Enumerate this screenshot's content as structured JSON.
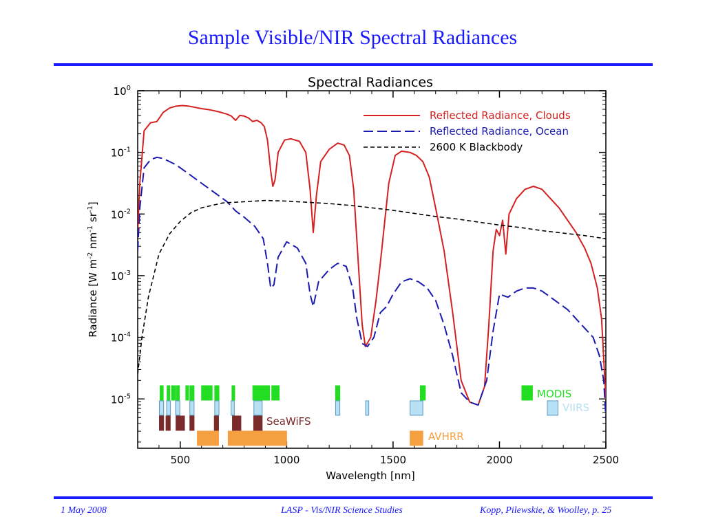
{
  "slide": {
    "title": "Sample Visible/NIR Spectral Radiances",
    "footer_left": "1 May 2008",
    "footer_center": "LASP - Vis/NIR Science Studies",
    "footer_right": "Kopp, Pilewskie, & Woolley, p. 25"
  },
  "colors": {
    "title": "#1a1aff",
    "clouds": "#d42020",
    "ocean": "#1a1ab0",
    "blackbody": "#000000",
    "modis": "#22dd22",
    "viirs": "#b8e0f4",
    "seawifs": "#7a2a2a",
    "avhrr": "#f5a040"
  },
  "chart_data": {
    "type": "line",
    "title": "Spectral Radiances",
    "xlabel": "Wavelength [nm]",
    "ylabel_text": "Radiance [W m",
    "ylabel_units": [
      "-2",
      " nm",
      "-1",
      " sr",
      "-1",
      "]"
    ],
    "xlim": [
      300,
      2500
    ],
    "ylim": [
      -5.8,
      0
    ],
    "yscale": "log",
    "x_ticks": [
      500,
      1000,
      1500,
      2000,
      2500
    ],
    "y_ticks": [
      {
        "exp": 0,
        "base": "10",
        "sup": "0"
      },
      {
        "exp": -1,
        "base": "10",
        "sup": "-1"
      },
      {
        "exp": -2,
        "base": "10",
        "sup": "-2"
      },
      {
        "exp": -3,
        "base": "10",
        "sup": "-3"
      },
      {
        "exp": -4,
        "base": "10",
        "sup": "-4"
      },
      {
        "exp": -5,
        "base": "10",
        "sup": "-5"
      }
    ],
    "legend_position": "top-right",
    "series": [
      {
        "name": "Reflected Radiance, Clouds",
        "style": "solid",
        "log10_values": [
          [
            300,
            -2.3
          ],
          [
            310,
            -1.5
          ],
          [
            330,
            -0.65
          ],
          [
            360,
            -0.52
          ],
          [
            390,
            -0.5
          ],
          [
            420,
            -0.35
          ],
          [
            450,
            -0.28
          ],
          [
            480,
            -0.25
          ],
          [
            510,
            -0.24
          ],
          [
            540,
            -0.25
          ],
          [
            570,
            -0.27
          ],
          [
            600,
            -0.29
          ],
          [
            640,
            -0.31
          ],
          [
            680,
            -0.34
          ],
          [
            700,
            -0.36
          ],
          [
            720,
            -0.38
          ],
          [
            740,
            -0.41
          ],
          [
            760,
            -0.48
          ],
          [
            780,
            -0.4
          ],
          [
            800,
            -0.41
          ],
          [
            820,
            -0.44
          ],
          [
            840,
            -0.5
          ],
          [
            860,
            -0.48
          ],
          [
            880,
            -0.52
          ],
          [
            895,
            -0.58
          ],
          [
            910,
            -0.8
          ],
          [
            925,
            -1.3
          ],
          [
            935,
            -1.55
          ],
          [
            945,
            -1.45
          ],
          [
            960,
            -1.0
          ],
          [
            990,
            -0.8
          ],
          [
            1020,
            -0.78
          ],
          [
            1060,
            -0.82
          ],
          [
            1090,
            -1.0
          ],
          [
            1110,
            -1.6
          ],
          [
            1125,
            -2.3
          ],
          [
            1140,
            -1.7
          ],
          [
            1160,
            -1.15
          ],
          [
            1200,
            -0.95
          ],
          [
            1240,
            -0.85
          ],
          [
            1270,
            -0.88
          ],
          [
            1295,
            -1.05
          ],
          [
            1315,
            -1.6
          ],
          [
            1335,
            -2.7
          ],
          [
            1355,
            -3.8
          ],
          [
            1370,
            -4.15
          ],
          [
            1395,
            -4.0
          ],
          [
            1420,
            -3.4
          ],
          [
            1440,
            -2.8
          ],
          [
            1480,
            -1.5
          ],
          [
            1510,
            -1.05
          ],
          [
            1540,
            -0.98
          ],
          [
            1580,
            -1.0
          ],
          [
            1610,
            -1.05
          ],
          [
            1640,
            -1.15
          ],
          [
            1670,
            -1.4
          ],
          [
            1700,
            -1.9
          ],
          [
            1740,
            -2.6
          ],
          [
            1780,
            -3.6
          ],
          [
            1820,
            -4.7
          ],
          [
            1860,
            -5.05
          ],
          [
            1900,
            -5.1
          ],
          [
            1930,
            -4.8
          ],
          [
            1950,
            -3.8
          ],
          [
            1970,
            -2.6
          ],
          [
            1985,
            -2.25
          ],
          [
            2000,
            -2.35
          ],
          [
            2015,
            -2.1
          ],
          [
            2030,
            -2.65
          ],
          [
            2045,
            -2.0
          ],
          [
            2080,
            -1.75
          ],
          [
            2120,
            -1.6
          ],
          [
            2160,
            -1.55
          ],
          [
            2200,
            -1.6
          ],
          [
            2240,
            -1.75
          ],
          [
            2280,
            -1.9
          ],
          [
            2320,
            -2.1
          ],
          [
            2360,
            -2.3
          ],
          [
            2400,
            -2.55
          ],
          [
            2430,
            -2.8
          ],
          [
            2460,
            -3.2
          ],
          [
            2480,
            -3.7
          ],
          [
            2500,
            -5.0
          ]
        ]
      },
      {
        "name": "Reflected Radiance, Ocean",
        "style": "dashed",
        "log10_values": [
          [
            300,
            -2.6
          ],
          [
            310,
            -1.9
          ],
          [
            330,
            -1.25
          ],
          [
            360,
            -1.12
          ],
          [
            390,
            -1.08
          ],
          [
            420,
            -1.1
          ],
          [
            450,
            -1.15
          ],
          [
            480,
            -1.2
          ],
          [
            520,
            -1.3
          ],
          [
            560,
            -1.4
          ],
          [
            600,
            -1.5
          ],
          [
            640,
            -1.6
          ],
          [
            680,
            -1.7
          ],
          [
            720,
            -1.8
          ],
          [
            760,
            -1.95
          ],
          [
            800,
            -2.05
          ],
          [
            850,
            -2.2
          ],
          [
            890,
            -2.4
          ],
          [
            910,
            -2.8
          ],
          [
            925,
            -3.2
          ],
          [
            940,
            -3.15
          ],
          [
            960,
            -2.7
          ],
          [
            1000,
            -2.45
          ],
          [
            1050,
            -2.55
          ],
          [
            1090,
            -2.8
          ],
          [
            1110,
            -3.3
          ],
          [
            1125,
            -3.5
          ],
          [
            1150,
            -3.1
          ],
          [
            1200,
            -2.9
          ],
          [
            1240,
            -2.8
          ],
          [
            1280,
            -2.85
          ],
          [
            1310,
            -3.2
          ],
          [
            1330,
            -3.7
          ],
          [
            1355,
            -4.1
          ],
          [
            1380,
            -4.15
          ],
          [
            1410,
            -4.0
          ],
          [
            1440,
            -3.6
          ],
          [
            1470,
            -3.5
          ],
          [
            1500,
            -3.3
          ],
          [
            1540,
            -3.1
          ],
          [
            1580,
            -3.05
          ],
          [
            1620,
            -3.1
          ],
          [
            1660,
            -3.2
          ],
          [
            1700,
            -3.4
          ],
          [
            1740,
            -3.8
          ],
          [
            1780,
            -4.3
          ],
          [
            1820,
            -4.9
          ],
          [
            1860,
            -5.05
          ],
          [
            1900,
            -5.1
          ],
          [
            1940,
            -4.7
          ],
          [
            1970,
            -3.9
          ],
          [
            2000,
            -3.3
          ],
          [
            2040,
            -3.35
          ],
          [
            2080,
            -3.25
          ],
          [
            2120,
            -3.2
          ],
          [
            2160,
            -3.2
          ],
          [
            2200,
            -3.25
          ],
          [
            2240,
            -3.35
          ],
          [
            2280,
            -3.45
          ],
          [
            2320,
            -3.55
          ],
          [
            2360,
            -3.7
          ],
          [
            2400,
            -3.85
          ],
          [
            2440,
            -4.0
          ],
          [
            2470,
            -4.3
          ],
          [
            2490,
            -4.7
          ],
          [
            2500,
            -5.3
          ]
        ]
      },
      {
        "name": "2600 K Blackbody",
        "style": "dashed",
        "log10_values": [
          [
            300,
            -4.6
          ],
          [
            320,
            -4.0
          ],
          [
            350,
            -3.35
          ],
          [
            400,
            -2.65
          ],
          [
            450,
            -2.32
          ],
          [
            500,
            -2.12
          ],
          [
            550,
            -1.98
          ],
          [
            600,
            -1.9
          ],
          [
            700,
            -1.82
          ],
          [
            800,
            -1.8
          ],
          [
            900,
            -1.78
          ],
          [
            1000,
            -1.79
          ],
          [
            1100,
            -1.81
          ],
          [
            1200,
            -1.83
          ],
          [
            1300,
            -1.86
          ],
          [
            1400,
            -1.9
          ],
          [
            1500,
            -1.94
          ],
          [
            1600,
            -1.99
          ],
          [
            1700,
            -2.04
          ],
          [
            1800,
            -2.08
          ],
          [
            1900,
            -2.13
          ],
          [
            2000,
            -2.18
          ],
          [
            2100,
            -2.22
          ],
          [
            2200,
            -2.27
          ],
          [
            2300,
            -2.31
          ],
          [
            2400,
            -2.35
          ],
          [
            2500,
            -2.4
          ]
        ]
      }
    ],
    "instrument_bands": [
      {
        "name": "MODIS",
        "label_color": "#22dd22",
        "ranges": [
          [
            405,
            420
          ],
          [
            438,
            448
          ],
          [
            459,
            479
          ],
          [
            483,
            493
          ],
          [
            526,
            536
          ],
          [
            545,
            565
          ],
          [
            600,
            650
          ],
          [
            662,
            682
          ],
          [
            743,
            753
          ],
          [
            841,
            876
          ],
          [
            877,
            920
          ],
          [
            930,
            965
          ],
          [
            1230,
            1250
          ],
          [
            1628,
            1652
          ],
          [
            2105,
            2155
          ]
        ]
      },
      {
        "name": "VIIRS",
        "label_color": "#b8e0f4",
        "ranges": [
          [
            402,
            422
          ],
          [
            436,
            454
          ],
          [
            478,
            498
          ],
          [
            545,
            565
          ],
          [
            662,
            682
          ],
          [
            739,
            754
          ],
          [
            846,
            885
          ],
          [
            1230,
            1250
          ],
          [
            1371,
            1386
          ],
          [
            1580,
            1640
          ],
          [
            2225,
            2275
          ]
        ]
      },
      {
        "name": "SeaWiFS",
        "label_color": "#7a2a2a",
        "ranges": [
          [
            402,
            422
          ],
          [
            433,
            453
          ],
          [
            480,
            500
          ],
          [
            500,
            520
          ],
          [
            545,
            565
          ],
          [
            660,
            680
          ],
          [
            745,
            785
          ],
          [
            845,
            885
          ]
        ]
      },
      {
        "name": "AVHRR",
        "label_color": "#f5a040",
        "ranges": [
          [
            580,
            680
          ],
          [
            725,
            1000
          ],
          [
            1580,
            1640
          ]
        ]
      }
    ]
  }
}
